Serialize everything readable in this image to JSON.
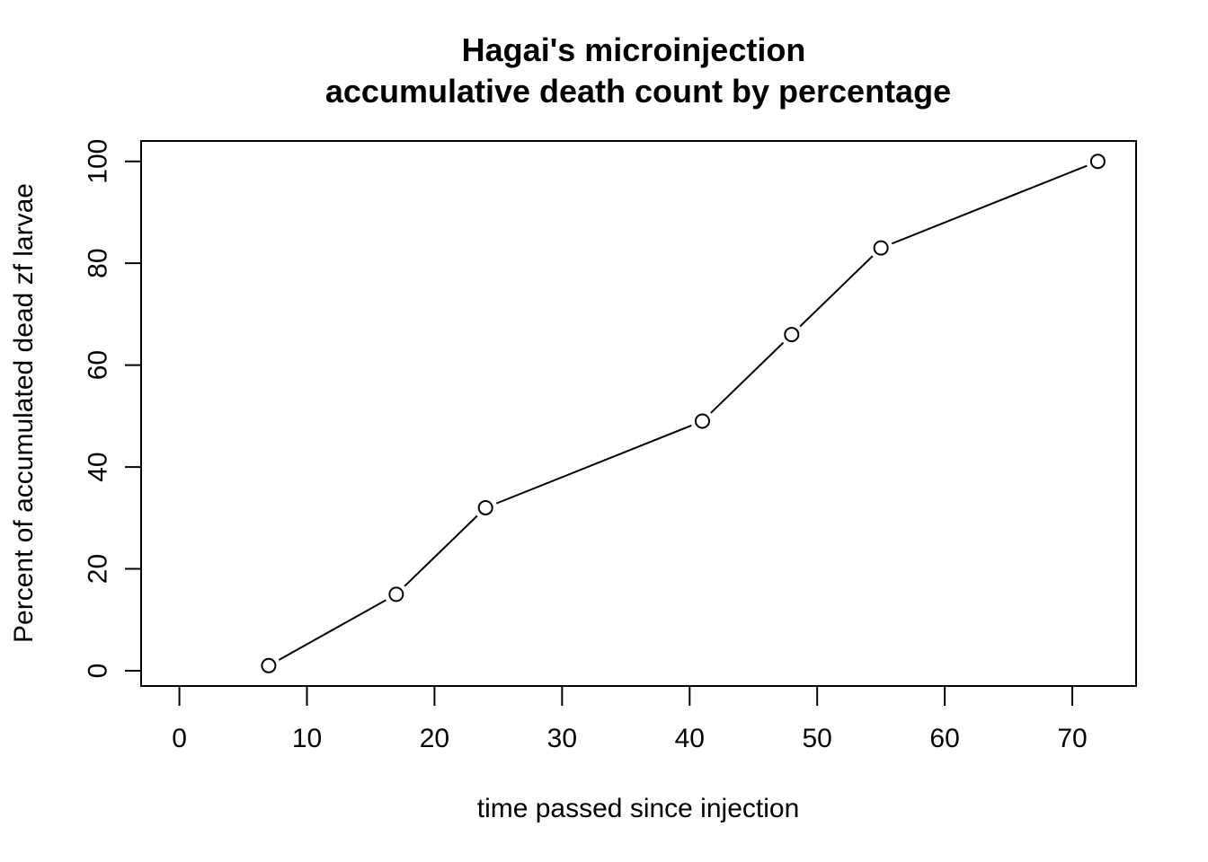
{
  "chart_data": {
    "type": "line",
    "title_lines": [
      "Hagai's microinjection",
      "accumulative death count by percentage"
    ],
    "xlabel": "time passed since injection",
    "ylabel": "Percent of accumulated dead zf larvae",
    "xlim": [
      -3,
      75
    ],
    "ylim": [
      -3,
      104
    ],
    "xticks": [
      0,
      10,
      20,
      30,
      40,
      50,
      60,
      70
    ],
    "xtick_labels": [
      "0",
      "10",
      "20",
      "30",
      "40",
      "50",
      "60",
      "70"
    ],
    "yticks": [
      0,
      20,
      40,
      60,
      80,
      100
    ],
    "ytick_labels": [
      "0",
      "20",
      "40",
      "60",
      "80",
      "100"
    ],
    "x": [
      7,
      17,
      24,
      41,
      48,
      55,
      72
    ],
    "y": [
      1,
      15,
      32,
      49,
      66,
      83,
      100
    ],
    "grid": false,
    "marker": "open-circle",
    "line_color": "#000000"
  }
}
